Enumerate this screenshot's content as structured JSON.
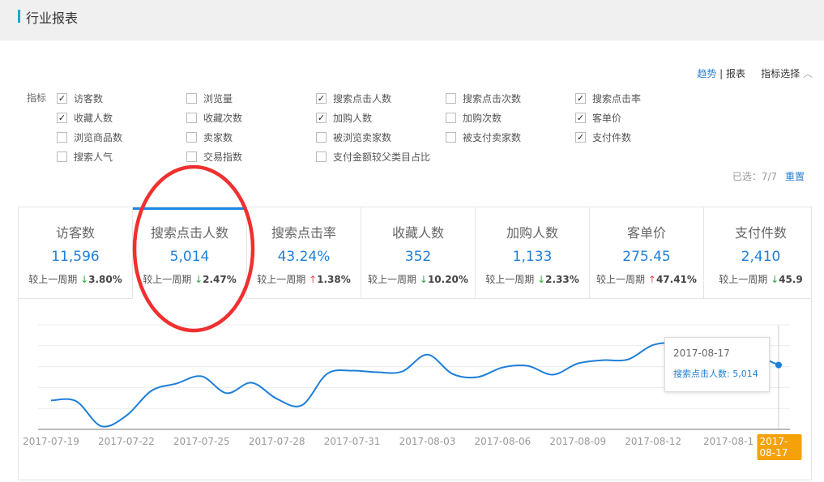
{
  "header": {
    "title": "行业报表"
  },
  "view_toggle": {
    "trend": "趋势",
    "sep": "|",
    "report": "报表",
    "metric_select": "指标选择",
    "chevron": "chevron-up-icon"
  },
  "metrics_label": "指标",
  "options": [
    [
      {
        "label": "访客数",
        "checked": true
      },
      {
        "label": "浏览量",
        "checked": false
      },
      {
        "label": "搜索点击人数",
        "checked": true
      },
      {
        "label": "搜索点击次数",
        "checked": false
      },
      {
        "label": "搜索点击率",
        "checked": true
      }
    ],
    [
      {
        "label": "收藏人数",
        "checked": true
      },
      {
        "label": "收藏次数",
        "checked": false
      },
      {
        "label": "加购人数",
        "checked": true
      },
      {
        "label": "加购次数",
        "checked": false
      },
      {
        "label": "客单价",
        "checked": true
      }
    ],
    [
      {
        "label": "浏览商品数",
        "checked": false
      },
      {
        "label": "卖家数",
        "checked": false
      },
      {
        "label": "被浏览卖家数",
        "checked": false
      },
      {
        "label": "被支付卖家数",
        "checked": false
      },
      {
        "label": "支付件数",
        "checked": true
      }
    ],
    [
      {
        "label": "搜索人气",
        "checked": false
      },
      {
        "label": "交易指数",
        "checked": false
      },
      {
        "label": "支付金额较父类目占比",
        "checked": false
      }
    ]
  ],
  "selected": {
    "text": "已选：7/7",
    "reset": "重置"
  },
  "cards": [
    {
      "name": "访客数",
      "value": "11,596",
      "cmp": "较上一周期",
      "dir": "down",
      "pct": "3.80%"
    },
    {
      "name": "搜索点击人数",
      "value": "5,014",
      "cmp": "较上一周期",
      "dir": "down",
      "pct": "2.47%",
      "active": true
    },
    {
      "name": "搜索点击率",
      "value": "43.24%",
      "cmp": "较上一周期",
      "dir": "up",
      "pct": "1.38%"
    },
    {
      "name": "收藏人数",
      "value": "352",
      "cmp": "较上一周期",
      "dir": "down",
      "pct": "10.20%"
    },
    {
      "name": "加购人数",
      "value": "1,133",
      "cmp": "较上一周期",
      "dir": "down",
      "pct": "2.33%"
    },
    {
      "name": "客单价",
      "value": "275.45",
      "cmp": "较上一周期",
      "dir": "up",
      "pct": "47.41%"
    },
    {
      "name": "支付件数",
      "value": "2,410",
      "cmp": "较上一周期",
      "dir": "down",
      "pct": "45.9"
    }
  ],
  "colors": {
    "accent": "#1e88e5",
    "down": "#2eaa3f",
    "up": "#f05050",
    "annotation": "#f03030",
    "highlight": "#f5a20a"
  },
  "tooltip": {
    "date": "2017-08-17",
    "label": "搜索点击人数: 5,014"
  },
  "chart_data": {
    "type": "line",
    "series": [
      {
        "name": "搜索点击人数",
        "values": [
          2257,
          2194,
          251,
          1066,
          3009,
          3573,
          4137,
          2821,
          3636,
          2382,
          1880,
          4326,
          4577,
          4451,
          4514,
          5831,
          4326,
          4075,
          4828,
          4953,
          4263,
          5140,
          5391,
          5454,
          6582,
          6707,
          6206,
          6393,
          5831,
          5014
        ]
      }
    ],
    "x_start": "2017-07-19",
    "x_end": "2017-08-17",
    "tick_labels": [
      "2017-07-19",
      "2017-07-22",
      "2017-07-25",
      "2017-07-28",
      "2017-07-31",
      "2017-08-03",
      "2017-08-06",
      "2017-08-09",
      "2017-08-12",
      "2017-08-1",
      "2017-08-17"
    ],
    "highlight_label": "2017-08-17",
    "ylim": [
      0,
      8150
    ],
    "grid": true
  }
}
